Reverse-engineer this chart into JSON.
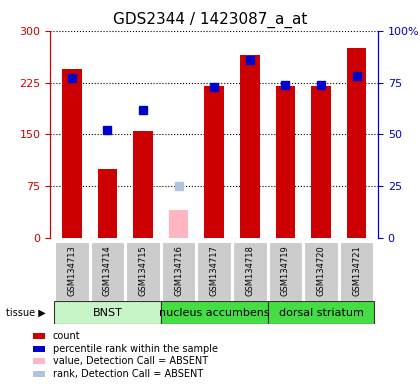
{
  "title": "GDS2344 / 1423087_a_at",
  "samples": [
    "GSM134713",
    "GSM134714",
    "GSM134715",
    "GSM134716",
    "GSM134717",
    "GSM134718",
    "GSM134719",
    "GSM134720",
    "GSM134721"
  ],
  "bar_values": [
    245,
    100,
    155,
    40,
    220,
    265,
    220,
    220,
    275
  ],
  "bar_absent": [
    false,
    false,
    false,
    true,
    false,
    false,
    false,
    false,
    false
  ],
  "rank_values": [
    77,
    52,
    62,
    25,
    73,
    86,
    74,
    74,
    78
  ],
  "rank_absent": [
    false,
    false,
    false,
    true,
    false,
    false,
    false,
    false,
    false
  ],
  "ylim_left": [
    0,
    300
  ],
  "ylim_right": [
    0,
    100
  ],
  "yticks_left": [
    0,
    75,
    150,
    225,
    300
  ],
  "yticks_right": [
    0,
    25,
    50,
    75,
    100
  ],
  "yticks_right_labels": [
    "0",
    "25",
    "50",
    "75",
    "100%"
  ],
  "tissue_groups": [
    {
      "label": "BNST",
      "start": 0,
      "end": 3,
      "color": "#C8F5C8"
    },
    {
      "label": "nucleus accumbens",
      "start": 3,
      "end": 6,
      "color": "#44DD44"
    },
    {
      "label": "dorsal striatum",
      "start": 6,
      "end": 9,
      "color": "#44DD44"
    }
  ],
  "legend_items": [
    {
      "color": "#CC0000",
      "label": "count"
    },
    {
      "color": "#0000CC",
      "label": "percentile rank within the sample"
    },
    {
      "color": "#FFB6C1",
      "label": "value, Detection Call = ABSENT"
    },
    {
      "color": "#B0C4DE",
      "label": "rank, Detection Call = ABSENT"
    }
  ],
  "left_axis_color": "#CC0000",
  "right_axis_color": "#0000CC",
  "bar_color": "#CC0000",
  "absent_bar_color": "#FFB6C1",
  "rank_color": "#0000CC",
  "absent_rank_color": "#B0C4DE",
  "bar_width": 0.55,
  "marker_size": 6,
  "title_fontsize": 11,
  "tick_fontsize": 8,
  "sample_fontsize": 6,
  "legend_fontsize": 7,
  "tissue_fontsize": 8
}
